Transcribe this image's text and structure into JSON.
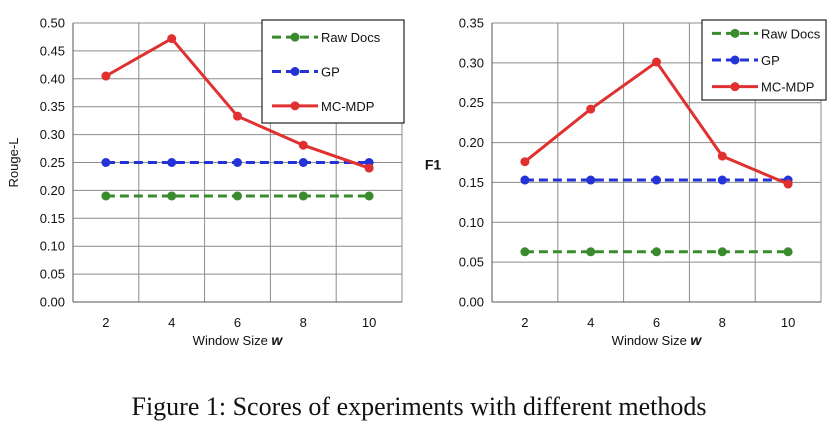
{
  "caption": "Figure 1: Scores of experiments with different methods",
  "chart_data": [
    {
      "type": "line",
      "title": "",
      "xlabel": "Window Size",
      "xlabel_var": "w",
      "ylabel": "Rouge-L",
      "x": [
        2,
        4,
        6,
        8,
        10
      ],
      "ylim": [
        0,
        0.5
      ],
      "yticks": [
        "0.00",
        "0.05",
        "0.10",
        "0.15",
        "0.20",
        "0.25",
        "0.30",
        "0.35",
        "0.40",
        "0.45",
        "0.50"
      ],
      "grid": true,
      "legend_position": "top-right",
      "series": [
        {
          "name": "Raw Docs",
          "values": [
            0.19,
            0.19,
            0.19,
            0.19,
            0.19
          ],
          "color": "#3a8a2e",
          "dashed": true
        },
        {
          "name": "GP",
          "values": [
            0.25,
            0.25,
            0.25,
            0.25,
            0.25
          ],
          "color": "#2433d6",
          "dashed": true
        },
        {
          "name": "MC-MDP",
          "values": [
            0.405,
            0.472,
            0.333,
            0.281,
            0.24
          ],
          "color": "#e03030",
          "dashed": false
        }
      ]
    },
    {
      "type": "line",
      "title": "",
      "xlabel": "Window Size",
      "xlabel_var": "w",
      "ylabel": "F1",
      "x": [
        2,
        4,
        6,
        8,
        10
      ],
      "ylim": [
        0,
        0.35
      ],
      "yticks": [
        "0.00",
        "0.05",
        "0.10",
        "0.15",
        "0.20",
        "0.25",
        "0.30",
        "0.35"
      ],
      "grid": true,
      "legend_position": "top-right",
      "series": [
        {
          "name": "Raw Docs",
          "values": [
            0.063,
            0.063,
            0.063,
            0.063,
            0.063
          ],
          "color": "#3a8a2e",
          "dashed": true
        },
        {
          "name": "GP",
          "values": [
            0.153,
            0.153,
            0.153,
            0.153,
            0.153
          ],
          "color": "#2433d6",
          "dashed": true
        },
        {
          "name": "MC-MDP",
          "values": [
            0.176,
            0.242,
            0.301,
            0.183,
            0.148
          ],
          "color": "#e03030",
          "dashed": false
        }
      ]
    }
  ]
}
